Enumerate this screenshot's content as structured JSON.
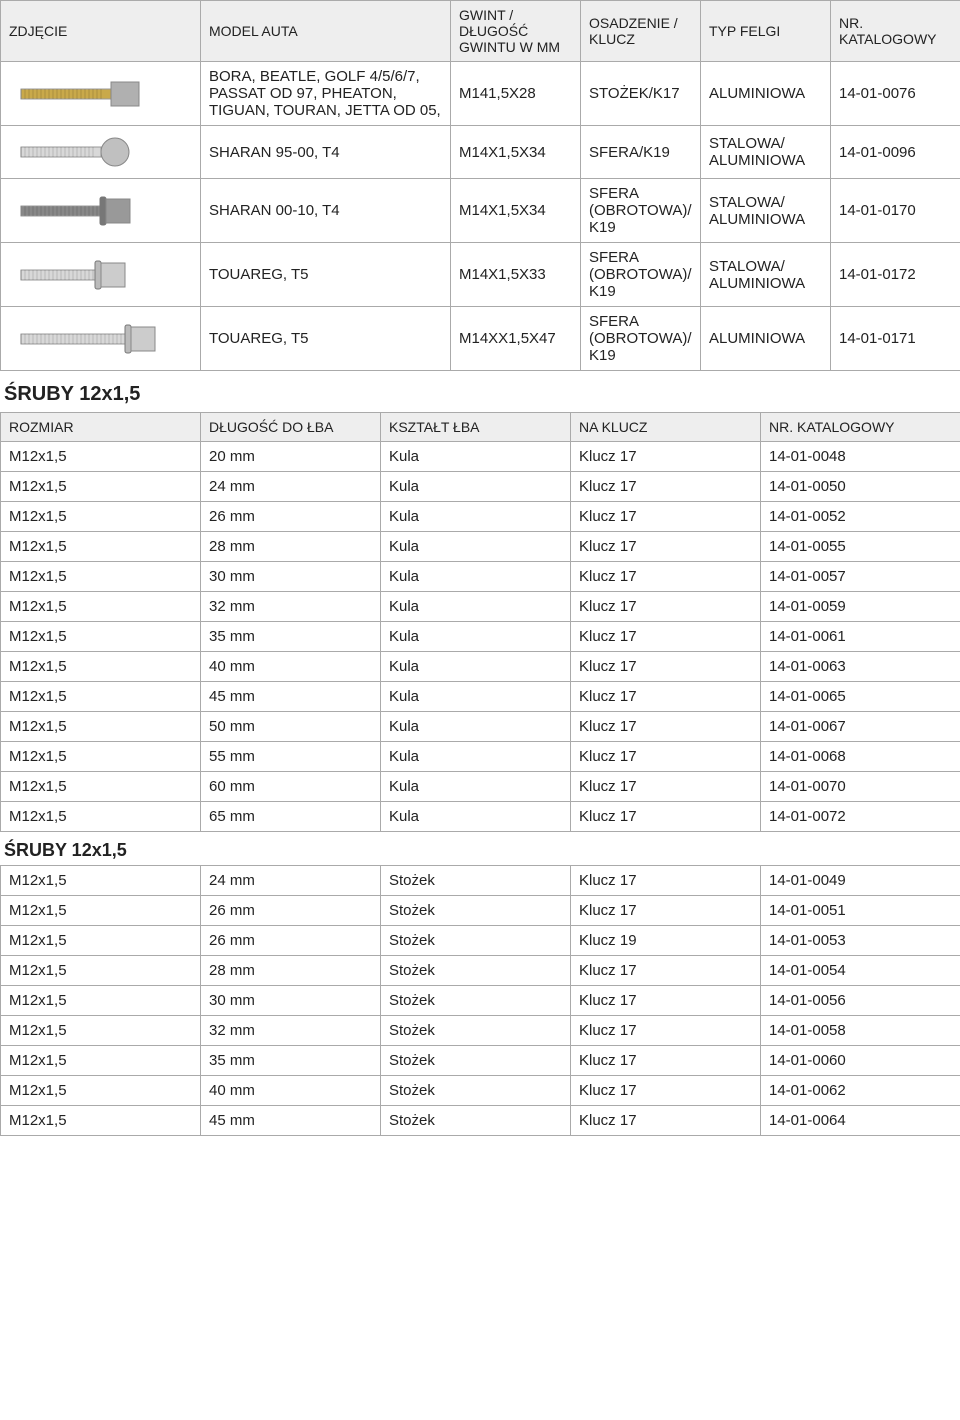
{
  "table1": {
    "headers": {
      "img": "ZDJĘCIE",
      "model": "MODEL AUTA",
      "gwint": "GWINT / DŁUGOŚĆ GWINTU W MM",
      "osad": "OSADZENIE / KLUCZ",
      "typ": "TYP FELGI",
      "kat": "NR. KATALOGOWY"
    },
    "rows": [
      {
        "model": "BORA, BEATLE, GOLF 4/5/6/7, PASSAT OD 97, PHEATON, TIGUAN, TOURAN, JETTA OD 05,",
        "gwint": "M141,5X28",
        "osad": "STOŻEK/K17",
        "typ": "ALUMINIOWA",
        "kat": "14-01-0076",
        "bolt": "gold-hex"
      },
      {
        "model": "SHARAN 95-00, T4",
        "gwint": "M14X1,5X34",
        "osad": "SFERA/K19",
        "typ": "STALOWA/ ALUMINIOWA",
        "kat": "14-01-0096",
        "bolt": "silver-round"
      },
      {
        "model": "SHARAN 00-10, T4",
        "gwint": "M14X1,5X34",
        "osad": "SFERA (OBROTOWA)/ K19",
        "typ": "STALOWA/ ALUMINIOWA",
        "kat": "14-01-0170",
        "bolt": "dark-hex-washer"
      },
      {
        "model": "TOUAREG, T5",
        "gwint": "M14X1,5X33",
        "osad": "SFERA (OBROTOWA)/ K19",
        "typ": "STALOWA/ ALUMINIOWA",
        "kat": "14-01-0172",
        "bolt": "silver-hex-washer"
      },
      {
        "model": "TOUAREG, T5",
        "gwint": "M14XX1,5X47",
        "osad": "SFERA (OBROTOWA)/ K19",
        "typ": "ALUMINIOWA",
        "kat": "14-01-0171",
        "bolt": "silver-long-washer"
      }
    ]
  },
  "section2": {
    "title": "ŚRUBY 12x1,5",
    "headers": {
      "rozmiar": "ROZMIAR",
      "dlugosc": "DŁUGOŚĆ DO ŁBA",
      "ksztalt": "KSZTAŁT ŁBA",
      "klucz": "NA KLUCZ",
      "kat": "NR. KATALOGOWY"
    },
    "rows": [
      {
        "rozmiar": "M12x1,5",
        "dlugosc": "20 mm",
        "ksztalt": "Kula",
        "klucz": "Klucz 17",
        "kat": "14-01-0048"
      },
      {
        "rozmiar": "M12x1,5",
        "dlugosc": "24 mm",
        "ksztalt": "Kula",
        "klucz": "Klucz 17",
        "kat": "14-01-0050"
      },
      {
        "rozmiar": "M12x1,5",
        "dlugosc": "26 mm",
        "ksztalt": "Kula",
        "klucz": "Klucz 17",
        "kat": "14-01-0052"
      },
      {
        "rozmiar": "M12x1,5",
        "dlugosc": "28 mm",
        "ksztalt": "Kula",
        "klucz": "Klucz 17",
        "kat": "14-01-0055"
      },
      {
        "rozmiar": "M12x1,5",
        "dlugosc": "30 mm",
        "ksztalt": "Kula",
        "klucz": "Klucz 17",
        "kat": "14-01-0057"
      },
      {
        "rozmiar": "M12x1,5",
        "dlugosc": "32 mm",
        "ksztalt": "Kula",
        "klucz": "Klucz 17",
        "kat": "14-01-0059"
      },
      {
        "rozmiar": "M12x1,5",
        "dlugosc": "35 mm",
        "ksztalt": "Kula",
        "klucz": "Klucz 17",
        "kat": "14-01-0061"
      },
      {
        "rozmiar": "M12x1,5",
        "dlugosc": "40 mm",
        "ksztalt": "Kula",
        "klucz": "Klucz 17",
        "kat": "14-01-0063"
      },
      {
        "rozmiar": "M12x1,5",
        "dlugosc": "45 mm",
        "ksztalt": "Kula",
        "klucz": "Klucz 17",
        "kat": "14-01-0065"
      },
      {
        "rozmiar": "M12x1,5",
        "dlugosc": "50 mm",
        "ksztalt": "Kula",
        "klucz": "Klucz 17",
        "kat": "14-01-0067"
      },
      {
        "rozmiar": "M12x1,5",
        "dlugosc": "55 mm",
        "ksztalt": "Kula",
        "klucz": "Klucz 17",
        "kat": "14-01-0068"
      },
      {
        "rozmiar": "M12x1,5",
        "dlugosc": "60 mm",
        "ksztalt": "Kula",
        "klucz": "Klucz 17",
        "kat": "14-01-0070"
      },
      {
        "rozmiar": "M12x1,5",
        "dlugosc": "65 mm",
        "ksztalt": "Kula",
        "klucz": "Klucz 17",
        "kat": "14-01-0072"
      }
    ]
  },
  "section3": {
    "title": "ŚRUBY 12x1,5",
    "rows": [
      {
        "rozmiar": "M12x1,5",
        "dlugosc": "24 mm",
        "ksztalt": "Stożek",
        "klucz": "Klucz 17",
        "kat": "14-01-0049"
      },
      {
        "rozmiar": "M12x1,5",
        "dlugosc": "26 mm",
        "ksztalt": "Stożek",
        "klucz": "Klucz 17",
        "kat": "14-01-0051"
      },
      {
        "rozmiar": "M12x1,5",
        "dlugosc": "26 mm",
        "ksztalt": "Stożek",
        "klucz": "Klucz 19",
        "kat": "14-01-0053"
      },
      {
        "rozmiar": "M12x1,5",
        "dlugosc": "28 mm",
        "ksztalt": "Stożek",
        "klucz": "Klucz 17",
        "kat": "14-01-0054"
      },
      {
        "rozmiar": "M12x1,5",
        "dlugosc": "30 mm",
        "ksztalt": "Stożek",
        "klucz": "Klucz 17",
        "kat": "14-01-0056"
      },
      {
        "rozmiar": "M12x1,5",
        "dlugosc": "32 mm",
        "ksztalt": "Stożek",
        "klucz": "Klucz 17",
        "kat": "14-01-0058"
      },
      {
        "rozmiar": "M12x1,5",
        "dlugosc": "35 mm",
        "ksztalt": "Stożek",
        "klucz": "Klucz 17",
        "kat": "14-01-0060"
      },
      {
        "rozmiar": "M12x1,5",
        "dlugosc": "40 mm",
        "ksztalt": "Stożek",
        "klucz": "Klucz 17",
        "kat": "14-01-0062"
      },
      {
        "rozmiar": "M12x1,5",
        "dlugosc": "45 mm",
        "ksztalt": "Stożek",
        "klucz": "Klucz 17",
        "kat": "14-01-0064"
      }
    ]
  },
  "bolt_svgs": {
    "gold-hex": {
      "shaft": "#c9a94a",
      "head": "#b0b0b0",
      "washer": null,
      "shaft_len": 90,
      "head_w": 28
    },
    "silver-round": {
      "shaft": "#d8d8d8",
      "head": "#c0c0c0",
      "washer": null,
      "shaft_len": 80,
      "head_w": 30,
      "round": true
    },
    "dark-hex-washer": {
      "shaft": "#888",
      "head": "#999",
      "washer": "#777",
      "shaft_len": 85,
      "head_w": 24
    },
    "silver-hex-washer": {
      "shaft": "#d8d8d8",
      "head": "#ccc",
      "washer": "#bbb",
      "shaft_len": 80,
      "head_w": 24
    },
    "silver-long-washer": {
      "shaft": "#d8d8d8",
      "head": "#ccc",
      "washer": "#bbb",
      "shaft_len": 110,
      "head_w": 24
    }
  }
}
